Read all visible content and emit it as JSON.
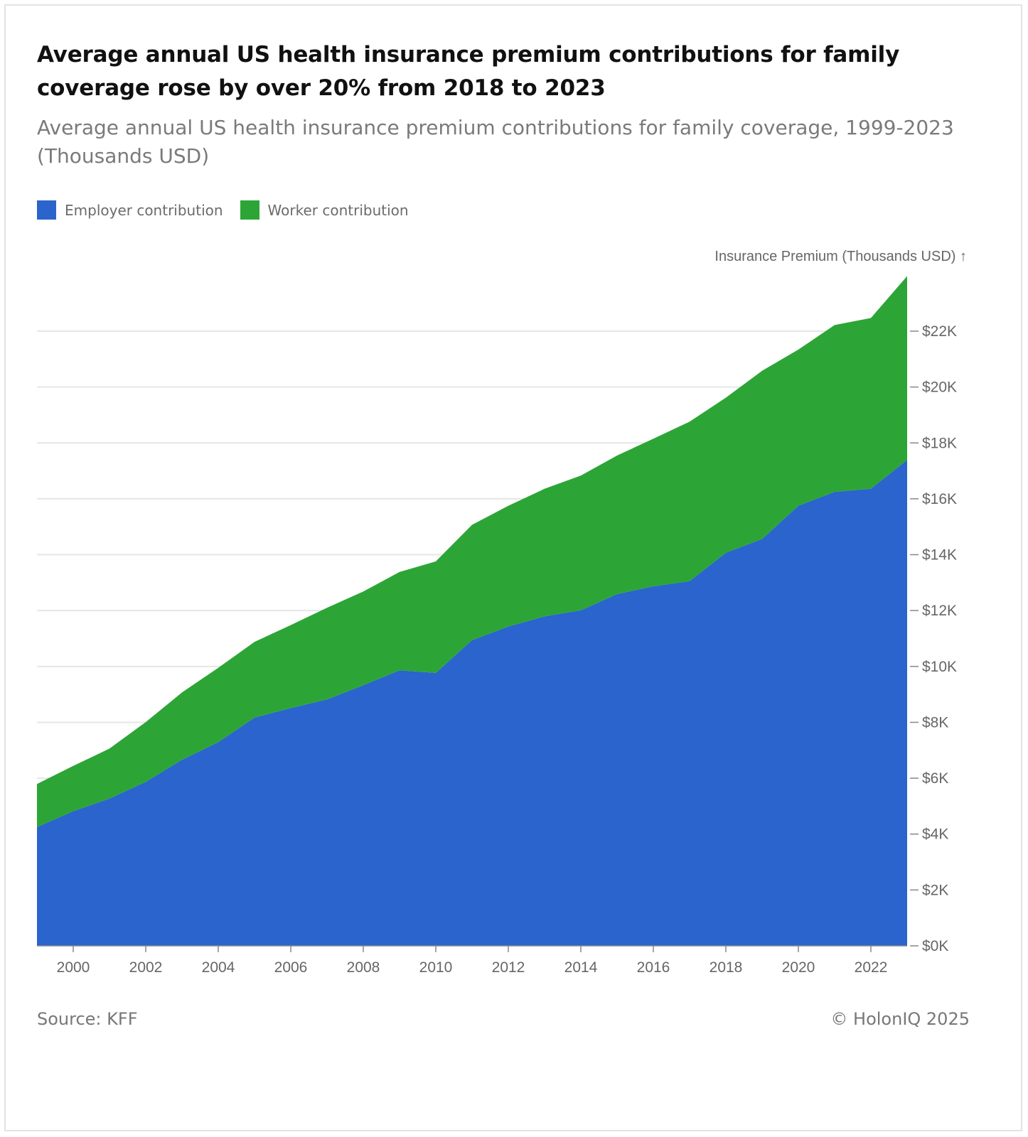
{
  "title": "Average annual US health insurance premium contributions for family coverage rose by over 20% from 2018 to 2023",
  "subtitle": "Average annual US health insurance premium contributions for family coverage, 1999-2023 (Thousands USD)",
  "legend": [
    {
      "label": "Employer contribution",
      "color": "#2a64cc"
    },
    {
      "label": "Worker contribution",
      "color": "#2ca536"
    }
  ],
  "source": "Source: KFF",
  "copyright": "© HolonIQ 2025",
  "chart_data": {
    "type": "area",
    "stacked": true,
    "ylabel": "Insurance Premium (Thousands USD) ↑",
    "ylim": [
      0,
      24
    ],
    "x": [
      1999,
      2000,
      2001,
      2002,
      2003,
      2004,
      2005,
      2006,
      2007,
      2008,
      2009,
      2010,
      2011,
      2012,
      2013,
      2014,
      2015,
      2016,
      2017,
      2018,
      2019,
      2020,
      2021,
      2022,
      2023
    ],
    "xlim": [
      1999,
      2023
    ],
    "x_ticks": [
      2000,
      2002,
      2004,
      2006,
      2008,
      2010,
      2012,
      2014,
      2016,
      2018,
      2020,
      2022
    ],
    "x_tick_labels": [
      "2000",
      "2002",
      "2004",
      "2006",
      "2008",
      "2010",
      "2012",
      "2014",
      "2016",
      "2018",
      "2020",
      "2022"
    ],
    "y_ticks": [
      0,
      2,
      4,
      6,
      8,
      10,
      12,
      14,
      16,
      18,
      20,
      22
    ],
    "y_tick_labels": [
      "$0K",
      "$2K",
      "$4K",
      "$6K",
      "$8K",
      "$10K",
      "$12K",
      "$14K",
      "$16K",
      "$18K",
      "$20K",
      "$22K"
    ],
    "y_axis_position": "right",
    "grid": true,
    "legend_position": "top-left",
    "series": [
      {
        "name": "Employer contribution",
        "color": "#2a64cc",
        "values": [
          4.25,
          4.82,
          5.27,
          5.87,
          6.66,
          7.29,
          8.17,
          8.51,
          8.82,
          9.33,
          9.86,
          9.77,
          10.94,
          11.43,
          11.79,
          12.01,
          12.59,
          12.87,
          13.05,
          14.07,
          14.56,
          15.75,
          16.25,
          16.36,
          17.39
        ]
      },
      {
        "name": "Worker contribution",
        "color": "#2ca536",
        "values": [
          1.54,
          1.62,
          1.79,
          2.14,
          2.41,
          2.66,
          2.71,
          2.97,
          3.28,
          3.35,
          3.52,
          3.99,
          4.13,
          4.32,
          4.57,
          4.82,
          4.96,
          5.28,
          5.71,
          5.55,
          6.02,
          5.59,
          5.97,
          6.11,
          6.58
        ]
      }
    ]
  }
}
